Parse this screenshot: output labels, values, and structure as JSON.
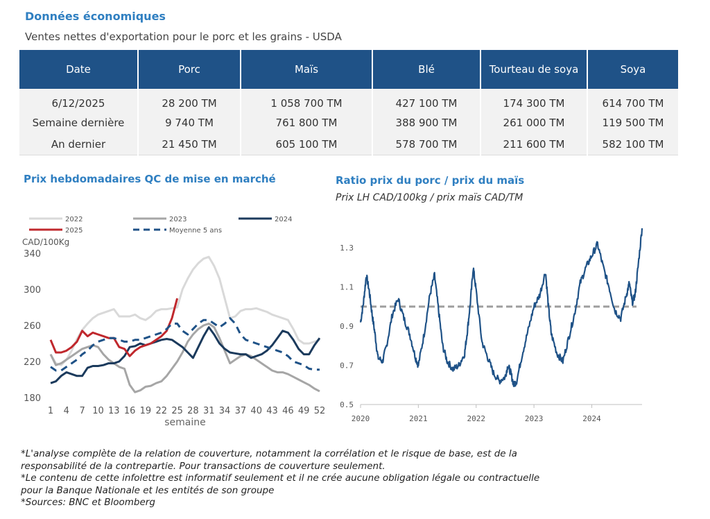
{
  "header": {
    "title": "Données économiques",
    "subtitle": "Ventes nettes d'exportation pour le porc et les grains - USDA"
  },
  "table": {
    "columns": [
      "Date",
      "Porc",
      "Maïs",
      "Blé",
      "Tourteau de soya",
      "Soya"
    ],
    "rows": [
      [
        "6/12/2025",
        "28 200 TM",
        "1 058 700 TM",
        "427 100 TM",
        "174 300 TM",
        "614 700 TM"
      ],
      [
        "Semaine dernière",
        "9 740 TM",
        "761 800 TM",
        "388 900 TM",
        "261 000 TM",
        "119 500 TM"
      ],
      [
        "An dernier",
        "21 450 TM",
        "605 100 TM",
        "578 700 TM",
        "211 600 TM",
        "582 100 TM"
      ]
    ]
  },
  "chart_data": [
    {
      "type": "line",
      "title": "Prix hebdomadaires QC de mise en marché",
      "ylabel": "CAD/100Kg",
      "xlabel": "semaine",
      "ylim": [
        180,
        340
      ],
      "yticks": [
        180,
        220,
        260,
        300,
        340
      ],
      "xticks": [
        1,
        4,
        7,
        10,
        13,
        16,
        19,
        22,
        25,
        28,
        31,
        34,
        37,
        40,
        43,
        46,
        49,
        52
      ],
      "xlim": [
        1,
        52
      ],
      "legend_position": "top",
      "grid": false,
      "series": [
        {
          "name": "2022",
          "color": "#d9d9d9",
          "dash": false,
          "x": [
            1,
            2,
            3,
            4,
            5,
            6,
            7,
            8,
            9,
            10,
            11,
            12,
            13,
            14,
            15,
            16,
            17,
            18,
            19,
            20,
            21,
            22,
            23,
            24,
            25,
            26,
            27,
            28,
            29,
            30,
            31,
            32,
            33,
            34,
            35,
            36,
            37,
            38,
            39,
            40,
            41,
            42,
            43,
            44,
            45,
            46,
            47,
            48,
            49,
            50,
            51,
            52
          ],
          "y": [
            228,
            218,
            216,
            222,
            232,
            245,
            255,
            262,
            268,
            272,
            274,
            276,
            278,
            270,
            270,
            270,
            272,
            268,
            266,
            270,
            276,
            278,
            278,
            279,
            280,
            300,
            312,
            322,
            329,
            334,
            336,
            326,
            312,
            290,
            268,
            270,
            276,
            278,
            278,
            279,
            277,
            275,
            272,
            270,
            268,
            266,
            256,
            244,
            240,
            240,
            242,
            244
          ]
        },
        {
          "name": "2023",
          "color": "#a6a6a6",
          "dash": false,
          "x": [
            1,
            2,
            3,
            4,
            5,
            6,
            7,
            8,
            9,
            10,
            11,
            12,
            13,
            14,
            15,
            16,
            17,
            18,
            19,
            20,
            21,
            22,
            23,
            24,
            25,
            26,
            27,
            28,
            29,
            30,
            31,
            32,
            33,
            34,
            35,
            36,
            37,
            38,
            39,
            40,
            41,
            42,
            43,
            44,
            45,
            46,
            47,
            48,
            49,
            50,
            51,
            52
          ],
          "y": [
            228,
            216,
            218,
            222,
            226,
            230,
            234,
            236,
            238,
            236,
            228,
            222,
            218,
            214,
            212,
            194,
            186,
            188,
            192,
            193,
            196,
            198,
            204,
            212,
            220,
            230,
            242,
            250,
            256,
            260,
            262,
            258,
            246,
            232,
            218,
            222,
            226,
            228,
            226,
            222,
            218,
            214,
            210,
            208,
            208,
            206,
            203,
            200,
            197,
            194,
            190,
            187
          ]
        },
        {
          "name": "2024",
          "color": "#1b3a5c",
          "dash": false,
          "x": [
            1,
            2,
            3,
            4,
            5,
            6,
            7,
            8,
            9,
            10,
            11,
            12,
            13,
            14,
            15,
            16,
            17,
            18,
            19,
            20,
            21,
            22,
            23,
            24,
            25,
            26,
            27,
            28,
            29,
            30,
            31,
            32,
            33,
            34,
            35,
            36,
            37,
            38,
            39,
            40,
            41,
            42,
            43,
            44,
            45,
            46,
            47,
            48,
            49,
            50,
            51,
            52
          ],
          "y": [
            196,
            198,
            204,
            208,
            206,
            204,
            204,
            213,
            215,
            215,
            216,
            218,
            218,
            220,
            226,
            236,
            237,
            240,
            238,
            240,
            242,
            244,
            245,
            244,
            240,
            236,
            230,
            224,
            236,
            248,
            258,
            250,
            240,
            234,
            230,
            229,
            228,
            228,
            224,
            226,
            228,
            232,
            238,
            246,
            254,
            252,
            244,
            234,
            228,
            228,
            238,
            246
          ]
        },
        {
          "name": "2025",
          "color": "#c0282d",
          "dash": false,
          "x": [
            1,
            2,
            3,
            4,
            5,
            6,
            7,
            8,
            9,
            10,
            11,
            12,
            13,
            14,
            15,
            16,
            17,
            18,
            19,
            20,
            21,
            22,
            23,
            24,
            25
          ],
          "y": [
            244,
            230,
            230,
            232,
            236,
            242,
            254,
            248,
            252,
            250,
            248,
            246,
            246,
            236,
            234,
            226,
            232,
            236,
            238,
            240,
            244,
            248,
            254,
            268,
            290
          ]
        },
        {
          "name": "Moyenne 5 ans",
          "color": "#1f5287",
          "dash": true,
          "x": [
            1,
            2,
            3,
            4,
            5,
            6,
            7,
            8,
            9,
            10,
            11,
            12,
            13,
            14,
            15,
            16,
            17,
            18,
            19,
            20,
            21,
            22,
            23,
            24,
            25,
            26,
            27,
            28,
            29,
            30,
            31,
            32,
            33,
            34,
            35,
            36,
            37,
            38,
            39,
            40,
            41,
            42,
            43,
            44,
            45,
            46,
            47,
            48,
            49,
            50,
            51,
            52
          ],
          "y": [
            214,
            210,
            210,
            214,
            218,
            222,
            228,
            232,
            238,
            242,
            244,
            246,
            246,
            244,
            242,
            242,
            244,
            244,
            246,
            248,
            250,
            252,
            256,
            262,
            262,
            254,
            250,
            256,
            262,
            266,
            266,
            262,
            258,
            262,
            268,
            262,
            250,
            244,
            242,
            240,
            238,
            236,
            234,
            232,
            230,
            226,
            220,
            218,
            216,
            212,
            211,
            211
          ]
        }
      ]
    },
    {
      "type": "line",
      "title": "Ratio prix du porc / prix du maïs",
      "subtitle": "Prix LH CAD/100kg / prix maïs CAD/TM",
      "ylim": [
        0.5,
        1.4
      ],
      "yticks": [
        0.5,
        0.7,
        0.9,
        1.1,
        1.3
      ],
      "xticks": [
        "2020",
        "2021",
        "2022",
        "2023",
        "2024"
      ],
      "xlim": [
        2020,
        2024.87
      ],
      "grid": false,
      "reference_line": {
        "y": 1.0,
        "color": "#9e9e9e",
        "dash": true
      },
      "series": [
        {
          "color": "#1f5287",
          "x": [
            2020.0,
            2020.05,
            2020.1,
            2020.15,
            2020.2,
            2020.25,
            2020.3,
            2020.38,
            2020.45,
            2020.55,
            2020.65,
            2020.75,
            2020.85,
            2020.95,
            2021.0,
            2021.1,
            2021.2,
            2021.28,
            2021.35,
            2021.42,
            2021.5,
            2021.6,
            2021.7,
            2021.8,
            2021.85,
            2021.9,
            2021.95,
            2022.0,
            2022.1,
            2022.2,
            2022.3,
            2022.4,
            2022.5,
            2022.55,
            2022.6,
            2022.65,
            2022.7,
            2022.8,
            2022.9,
            2023.0,
            2023.1,
            2023.2,
            2023.25,
            2023.3,
            2023.4,
            2023.5,
            2023.6,
            2023.7,
            2023.8,
            2023.9,
            2024.0,
            2024.1,
            2024.2,
            2024.3,
            2024.4,
            2024.5,
            2024.6,
            2024.65,
            2024.7,
            2024.75,
            2024.8,
            2024.87
          ],
          "y": [
            0.92,
            1.02,
            1.16,
            1.08,
            0.96,
            0.86,
            0.74,
            0.72,
            0.8,
            0.96,
            1.04,
            0.94,
            0.86,
            0.74,
            0.7,
            0.86,
            1.06,
            1.16,
            0.98,
            0.8,
            0.72,
            0.68,
            0.7,
            0.76,
            0.88,
            1.02,
            1.2,
            1.08,
            0.82,
            0.74,
            0.66,
            0.62,
            0.64,
            0.7,
            0.66,
            0.6,
            0.62,
            0.76,
            0.88,
            1.0,
            1.06,
            1.18,
            1.0,
            0.86,
            0.76,
            0.72,
            0.84,
            0.96,
            1.12,
            1.2,
            1.26,
            1.32,
            1.2,
            1.1,
            0.98,
            0.94,
            1.06,
            1.12,
            1.02,
            1.06,
            1.2,
            1.4
          ]
        }
      ]
    }
  ],
  "right_chart": {
    "title": "Ratio prix du porc / prix du maïs",
    "subtitle": "Prix LH CAD/100kg / prix maïs CAD/TM"
  },
  "left_chart": {
    "title": "Prix hebdomadaires QC de mise en marché"
  },
  "footnotes": [
    "*L'analyse complète de la relation de couverture, notamment la corrélation et le risque de base, est de la",
    "responsabilité de la contrepartie. Pour transactions de couverture seulement.",
    "*Le contenu de cette infolettre est informatif seulement et il ne crée aucune obligation légale ou contractuelle",
    "pour la Banque Nationale et les entités de son groupe",
    "*Sources: BNC et Bloomberg"
  ]
}
